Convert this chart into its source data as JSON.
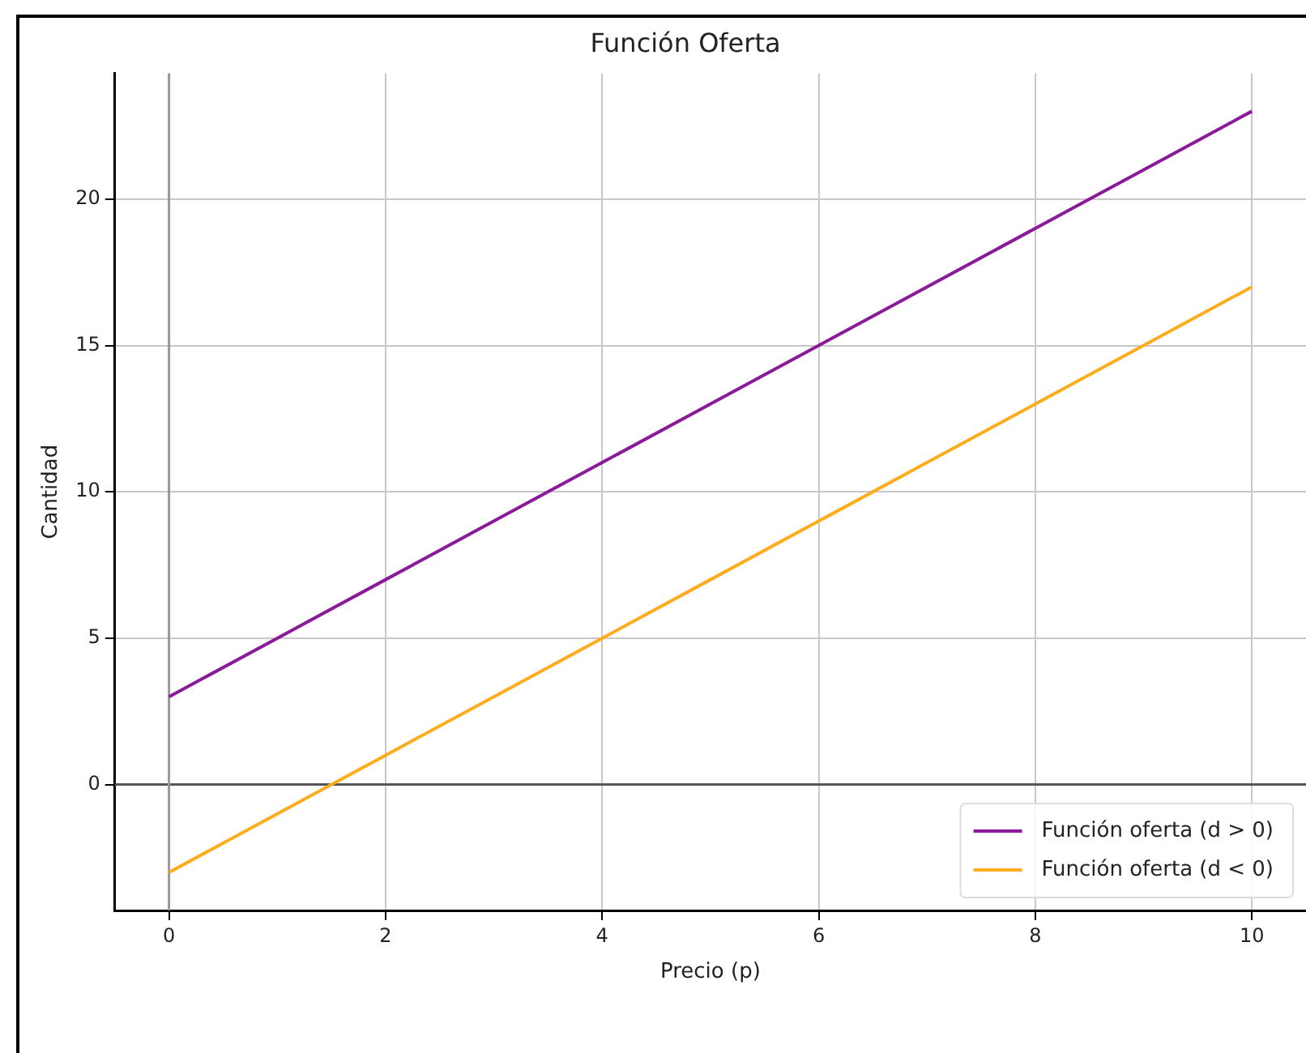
{
  "chart_data": {
    "type": "line",
    "title": "Función Oferta",
    "xlabel": "Precio (p)",
    "ylabel": "Cantidad",
    "x": [
      0,
      1,
      2,
      3,
      4,
      5,
      6,
      7,
      8,
      9,
      10
    ],
    "series": [
      {
        "name": "Función oferta (d > 0)",
        "color": "#8b1a9b",
        "values": [
          3,
          5,
          7,
          9,
          11,
          13,
          15,
          17,
          19,
          21,
          23
        ]
      },
      {
        "name": "Función oferta (d < 0)",
        "color": "#ffad1f",
        "values": [
          -3,
          -1,
          1,
          3,
          5,
          7,
          9,
          11,
          13,
          15,
          17
        ]
      }
    ],
    "xlim": [
      -0.5,
      10.5
    ],
    "ylim": [
      -4.3,
      24.3
    ],
    "xticks": [
      0,
      2,
      4,
      6,
      8,
      10
    ],
    "yticks": [
      0,
      5,
      10,
      15,
      20
    ],
    "ref_lines": [
      {
        "axis": "y",
        "value": 0,
        "color": "#555555"
      },
      {
        "axis": "x",
        "value": 0,
        "color": "#999999"
      }
    ],
    "grid": true,
    "legend": "bottom right",
    "marker": "none",
    "line_style": "solid"
  }
}
